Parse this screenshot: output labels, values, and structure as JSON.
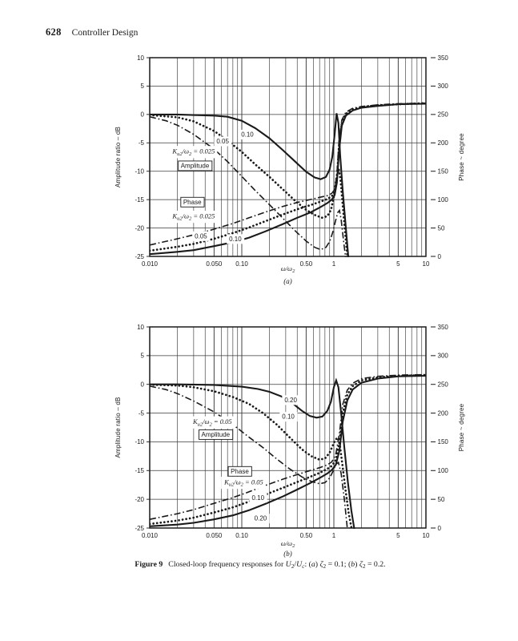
{
  "page": {
    "number": "628",
    "running_head": "Controller Design"
  },
  "colors": {
    "ink": "#1a1a1a",
    "grid": "#3a3a3a",
    "paper": "#ffffff"
  },
  "caption": {
    "segments": [
      {
        "t": "Figure 9",
        "b": true
      },
      {
        "t": "Closed-loop frequency responses for "
      },
      {
        "t": "U",
        "i": true
      },
      {
        "t": "2",
        "sub": true
      },
      {
        "t": "/"
      },
      {
        "t": "U",
        "i": true
      },
      {
        "t": "c",
        "sub": true,
        "i": true
      },
      {
        "t": ": ("
      },
      {
        "t": "a",
        "i": true
      },
      {
        "t": ") "
      },
      {
        "t": "ζ",
        "i": true
      },
      {
        "t": "2",
        "sub": true
      },
      {
        "t": " = 0.1; ("
      },
      {
        "t": "b",
        "i": true
      },
      {
        "t": ") "
      },
      {
        "t": "ζ",
        "i": true
      },
      {
        "t": "2",
        "sub": true
      },
      {
        "t": " = 0.2."
      }
    ]
  },
  "chart_data": [
    {
      "id": "a",
      "type": "line",
      "x_scale": "log",
      "sublabel": "(a)",
      "xlabel": "ω/ω_{2}",
      "x_axis": {
        "min": 0.01,
        "max": 10,
        "ticks": [
          {
            "v": 0.01,
            "label": "0.010"
          },
          {
            "v": 0.05,
            "label": "0.050"
          },
          {
            "v": 0.1,
            "label": "0.10"
          },
          {
            "v": 0.5,
            "label": "0.50"
          },
          {
            "v": 1,
            "label": "1"
          },
          {
            "v": 5,
            "label": "5"
          },
          {
            "v": 10,
            "label": "10"
          }
        ]
      },
      "left_axis": {
        "title": "Amplitude ratio – dB",
        "min": -25,
        "max": 10,
        "ticks": [
          10,
          5,
          0,
          -5,
          -10,
          -15,
          -20,
          -25
        ]
      },
      "right_axis": {
        "title": "Phase ~ degree",
        "min": 0,
        "max": 350,
        "ticks": [
          350,
          300,
          250,
          200,
          150,
          100,
          50,
          0
        ]
      },
      "series": [
        {
          "name": "amplitude-K0.10",
          "role": "amplitude",
          "k": "0.10",
          "style": "solid",
          "axis": "left",
          "x": [
            0.01,
            0.02,
            0.03,
            0.05,
            0.07,
            0.1,
            0.14,
            0.2,
            0.28,
            0.38,
            0.5,
            0.62,
            0.72,
            0.82,
            0.9,
            0.96,
            1.02,
            1.07,
            1.12,
            1.17,
            1.25,
            1.35,
            1.45
          ],
          "y": [
            0,
            0,
            -0.1,
            -0.2,
            -0.4,
            -1.1,
            -2.4,
            -4.2,
            -6.3,
            -8.3,
            -10.1,
            -11.1,
            -11.4,
            -11.0,
            -9.7,
            -7.5,
            -3.5,
            0.2,
            -1.5,
            -7,
            -13.5,
            -20,
            -26
          ]
        },
        {
          "name": "amplitude-K0.05",
          "role": "amplitude",
          "k": "0.05",
          "style": "dotted",
          "axis": "left",
          "x": [
            0.01,
            0.02,
            0.03,
            0.05,
            0.07,
            0.1,
            0.14,
            0.2,
            0.28,
            0.38,
            0.5,
            0.62,
            0.75,
            0.85,
            0.93,
            1.0,
            1.07,
            1.13,
            1.18,
            1.25,
            1.33,
            1.42
          ],
          "y": [
            -0.1,
            -0.5,
            -1.2,
            -2.9,
            -4.6,
            -6.6,
            -8.8,
            -11.0,
            -13.2,
            -15.2,
            -16.8,
            -17.7,
            -18.2,
            -17.9,
            -16.8,
            -14.5,
            -11.0,
            -9.6,
            -11.5,
            -16.0,
            -21.0,
            -26.0
          ]
        },
        {
          "name": "amplitude-K0.025",
          "role": "amplitude",
          "k": "0.025",
          "style": "dashdot",
          "axis": "left",
          "x": [
            0.01,
            0.015,
            0.02,
            0.03,
            0.05,
            0.07,
            0.1,
            0.14,
            0.2,
            0.28,
            0.38,
            0.5,
            0.62,
            0.72,
            0.82,
            0.9,
            0.97,
            1.04,
            1.1,
            1.15,
            1.2,
            1.28,
            1.36
          ],
          "y": [
            -0.4,
            -1.1,
            -1.9,
            -3.5,
            -6.1,
            -8.3,
            -10.9,
            -13.4,
            -15.9,
            -18.3,
            -20.5,
            -22.3,
            -23.4,
            -23.8,
            -23.4,
            -22.4,
            -20.8,
            -18.8,
            -17.3,
            -16.9,
            -18.5,
            -22.5,
            -26.0
          ]
        },
        {
          "name": "phase-K0.025",
          "role": "phase",
          "k": "0.025",
          "style": "dashdot",
          "axis": "right",
          "x": [
            0.01,
            0.02,
            0.03,
            0.05,
            0.08,
            0.12,
            0.18,
            0.28,
            0.4,
            0.55,
            0.7,
            0.85,
            0.95,
            1.02,
            1.08,
            1.14,
            1.22,
            1.35,
            1.6,
            2,
            3,
            5,
            10
          ],
          "y": [
            20,
            31,
            38,
            48,
            58,
            68,
            78,
            88,
            95,
            100,
            104,
            107,
            111,
            118,
            145,
            205,
            240,
            254,
            261,
            264,
            267,
            269,
            270
          ]
        },
        {
          "name": "phase-K0.05",
          "role": "phase",
          "k": "0.05",
          "style": "dotted",
          "axis": "right",
          "x": [
            0.01,
            0.02,
            0.03,
            0.05,
            0.08,
            0.12,
            0.18,
            0.28,
            0.4,
            0.55,
            0.7,
            0.85,
            0.95,
            1.02,
            1.08,
            1.14,
            1.22,
            1.35,
            1.6,
            2,
            3,
            5,
            10
          ],
          "y": [
            10,
            17,
            22,
            31,
            41,
            51,
            62,
            74,
            83,
            90,
            96,
            101,
            106,
            114,
            138,
            195,
            235,
            251,
            259,
            263,
            266,
            268,
            270
          ]
        },
        {
          "name": "phase-K0.10",
          "role": "phase",
          "k": "0.10",
          "style": "solid",
          "axis": "right",
          "x": [
            0.01,
            0.02,
            0.03,
            0.05,
            0.08,
            0.12,
            0.18,
            0.28,
            0.4,
            0.55,
            0.7,
            0.85,
            0.95,
            1.02,
            1.08,
            1.14,
            1.22,
            1.35,
            1.6,
            2,
            3,
            5,
            10
          ],
          "y": [
            4,
            8,
            11,
            18,
            25,
            33,
            44,
            57,
            68,
            77,
            86,
            94,
            100,
            108,
            130,
            185,
            230,
            248,
            257,
            262,
            265,
            268,
            269
          ]
        }
      ],
      "annotations": [
        {
          "x": 0.115,
          "y": -3.5,
          "text": "0.10"
        },
        {
          "x": 0.062,
          "y": -4.7,
          "text": "0.05"
        },
        {
          "x": 0.03,
          "y": -6.5,
          "text": "K_{u2}/ω_{2} = 0.025",
          "math": true
        },
        {
          "x": 0.031,
          "y": -9.0,
          "text": "Amplitude",
          "boxed": true
        },
        {
          "x": 0.029,
          "y": -15.4,
          "text": "Phase",
          "boxed": true
        },
        {
          "x": 0.03,
          "y": -17.9,
          "text": "K_{u2}/ω_{2} = 0.025",
          "math": true
        },
        {
          "x": 0.036,
          "y": -21.4,
          "text": "0.05"
        },
        {
          "x": 0.085,
          "y": -21.9,
          "text": "0.10"
        }
      ]
    },
    {
      "id": "b",
      "type": "line",
      "x_scale": "log",
      "sublabel": "(b)",
      "xlabel": "ω/ω_{2}",
      "x_axis": {
        "min": 0.01,
        "max": 10,
        "ticks": [
          {
            "v": 0.01,
            "label": "0.010"
          },
          {
            "v": 0.05,
            "label": "0.050"
          },
          {
            "v": 0.1,
            "label": "0.10"
          },
          {
            "v": 0.5,
            "label": "0.50"
          },
          {
            "v": 1,
            "label": "1"
          },
          {
            "v": 5,
            "label": "5"
          },
          {
            "v": 10,
            "label": "10"
          }
        ]
      },
      "left_axis": {
        "title": "Amplitude ratio – dB",
        "min": -25,
        "max": 10,
        "ticks": [
          10,
          5,
          0,
          -5,
          -10,
          -15,
          -20,
          -25
        ]
      },
      "right_axis": {
        "title": "Phase ~ degree",
        "min": 0,
        "max": 350,
        "ticks": [
          350,
          300,
          250,
          200,
          150,
          100,
          50,
          0
        ]
      },
      "series": [
        {
          "name": "amplitude-K0.20",
          "role": "amplitude",
          "k": "0.20",
          "style": "solid",
          "axis": "left",
          "x": [
            0.01,
            0.02,
            0.05,
            0.1,
            0.15,
            0.2,
            0.27,
            0.35,
            0.45,
            0.55,
            0.65,
            0.75,
            0.85,
            0.93,
            1.0,
            1.06,
            1.12,
            1.2,
            1.3,
            1.42,
            1.55,
            1.7
          ],
          "y": [
            0,
            0,
            -0.1,
            -0.4,
            -0.8,
            -1.3,
            -2.1,
            -3.2,
            -4.6,
            -5.5,
            -5.8,
            -5.6,
            -4.6,
            -3.0,
            -0.5,
            0.7,
            -0.5,
            -5.0,
            -11.0,
            -17.0,
            -22.0,
            -26.0
          ]
        },
        {
          "name": "amplitude-K0.10",
          "role": "amplitude",
          "k": "0.10",
          "style": "dotted",
          "axis": "left",
          "x": [
            0.01,
            0.02,
            0.03,
            0.05,
            0.08,
            0.12,
            0.17,
            0.24,
            0.33,
            0.45,
            0.57,
            0.7,
            0.8,
            0.9,
            0.97,
            1.04,
            1.1,
            1.16,
            1.24,
            1.33,
            1.45,
            1.6
          ],
          "y": [
            -0.05,
            -0.2,
            -0.5,
            -1.2,
            -2.2,
            -3.4,
            -5.0,
            -7.0,
            -9.2,
            -11.3,
            -12.5,
            -13.1,
            -12.9,
            -11.9,
            -10.7,
            -9.6,
            -9.3,
            -10.5,
            -14.0,
            -18.0,
            -22.5,
            -26.0
          ]
        },
        {
          "name": "amplitude-K0.05",
          "role": "amplitude",
          "k": "0.05",
          "style": "dashdot",
          "axis": "left",
          "x": [
            0.01,
            0.015,
            0.02,
            0.03,
            0.05,
            0.08,
            0.12,
            0.17,
            0.24,
            0.33,
            0.45,
            0.57,
            0.7,
            0.8,
            0.9,
            0.98,
            1.05,
            1.12,
            1.2,
            1.3,
            1.42
          ],
          "y": [
            -0.3,
            -0.9,
            -1.6,
            -2.9,
            -4.8,
            -7.0,
            -9.2,
            -11.0,
            -13.0,
            -14.7,
            -16.1,
            -16.9,
            -17.3,
            -17.1,
            -16.3,
            -15.1,
            -13.9,
            -13.6,
            -15.5,
            -20.0,
            -26.0
          ]
        },
        {
          "name": "phase-K0.05",
          "role": "phase",
          "k": "0.05",
          "style": "dashdot",
          "axis": "right",
          "x": [
            0.01,
            0.02,
            0.03,
            0.05,
            0.08,
            0.12,
            0.18,
            0.28,
            0.4,
            0.55,
            0.7,
            0.85,
            0.95,
            1.05,
            1.15,
            1.25,
            1.4,
            1.6,
            2,
            3,
            5,
            10
          ],
          "y": [
            15,
            25,
            32,
            43,
            53,
            63,
            74,
            85,
            93,
            100,
            105,
            110,
            115,
            128,
            165,
            215,
            240,
            252,
            260,
            264,
            266,
            267
          ]
        },
        {
          "name": "phase-K0.10",
          "role": "phase",
          "k": "0.10",
          "style": "dotted",
          "axis": "right",
          "x": [
            0.01,
            0.02,
            0.03,
            0.05,
            0.08,
            0.12,
            0.18,
            0.28,
            0.4,
            0.55,
            0.7,
            0.85,
            0.95,
            1.05,
            1.15,
            1.25,
            1.4,
            1.6,
            2,
            3,
            5,
            10
          ],
          "y": [
            7,
            13,
            18,
            27,
            36,
            46,
            58,
            70,
            80,
            89,
            96,
            103,
            108,
            118,
            150,
            200,
            232,
            247,
            257,
            262,
            265,
            266
          ]
        },
        {
          "name": "phase-K0.20",
          "role": "phase",
          "k": "0.20",
          "style": "solid",
          "axis": "right",
          "x": [
            0.01,
            0.02,
            0.03,
            0.05,
            0.08,
            0.12,
            0.18,
            0.28,
            0.4,
            0.55,
            0.7,
            0.85,
            0.95,
            1.05,
            1.15,
            1.25,
            1.4,
            1.6,
            2,
            3,
            5,
            10
          ],
          "y": [
            3,
            6,
            9,
            15,
            22,
            31,
            42,
            55,
            67,
            78,
            87,
            95,
            101,
            110,
            135,
            185,
            222,
            241,
            253,
            260,
            264,
            265
          ]
        }
      ],
      "annotations": [
        {
          "x": 0.34,
          "y": -2.7,
          "text": "0.20"
        },
        {
          "x": 0.32,
          "y": -5.6,
          "text": "0.10"
        },
        {
          "x": 0.048,
          "y": -6.5,
          "text": "K_{u2}/ω_{2} = 0.05",
          "math": true
        },
        {
          "x": 0.052,
          "y": -8.7,
          "text": "Amplitude",
          "boxed": true
        },
        {
          "x": 0.095,
          "y": -15.1,
          "text": "Phase",
          "boxed": true
        },
        {
          "x": 0.105,
          "y": -17.0,
          "text": "K_{u2}/ω_{2} = 0.05",
          "math": true
        },
        {
          "x": 0.15,
          "y": -19.7,
          "text": "0.10"
        },
        {
          "x": 0.16,
          "y": -23.3,
          "text": "0.20"
        }
      ]
    }
  ]
}
